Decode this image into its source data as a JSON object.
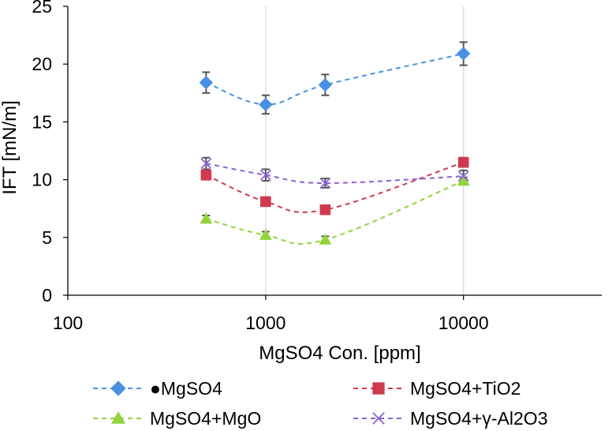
{
  "chart_data": {
    "type": "line",
    "title": "",
    "xlabel": "MgSO4 Con. [ppm]",
    "ylabel": "IFT [mN/m]",
    "xscale": "log",
    "xlim": [
      100,
      50000
    ],
    "ylim": [
      0,
      25
    ],
    "x_ticks": [
      100,
      1000,
      10000
    ],
    "x_tick_labels": [
      "100",
      "1000",
      "10000"
    ],
    "y_ticks": [
      0,
      5,
      10,
      15,
      20,
      25
    ],
    "y_tick_labels": [
      "0",
      "5",
      "10",
      "15",
      "20",
      "25"
    ],
    "grid": "vertical",
    "legend_position": "bottom",
    "x": [
      500,
      1000,
      2000,
      10000
    ],
    "series": [
      {
        "name": "●MgSO4",
        "color": "#4a90e2",
        "marker": "diamond",
        "values": [
          18.4,
          16.5,
          18.2,
          20.9
        ],
        "error": [
          0.9,
          0.8,
          0.9,
          1.0
        ]
      },
      {
        "name": "MgSO4+TiO2",
        "color": "#cf3a4e",
        "marker": "square",
        "values": [
          10.4,
          8.1,
          7.4,
          11.5
        ],
        "error": [
          0.4,
          0.3,
          0.3,
          0.4
        ]
      },
      {
        "name": "MgSO4+MgO",
        "color": "#92d43c",
        "marker": "triangle",
        "values": [
          6.6,
          5.2,
          4.8,
          9.9
        ],
        "error": [
          0.3,
          0.3,
          0.3,
          0.3
        ]
      },
      {
        "name": "MgSO4+γ-Al2O3",
        "color": "#8a63d2",
        "marker": "x",
        "values": [
          11.4,
          10.4,
          9.7,
          10.3
        ],
        "error": [
          0.5,
          0.5,
          0.4,
          0.5
        ]
      }
    ]
  }
}
